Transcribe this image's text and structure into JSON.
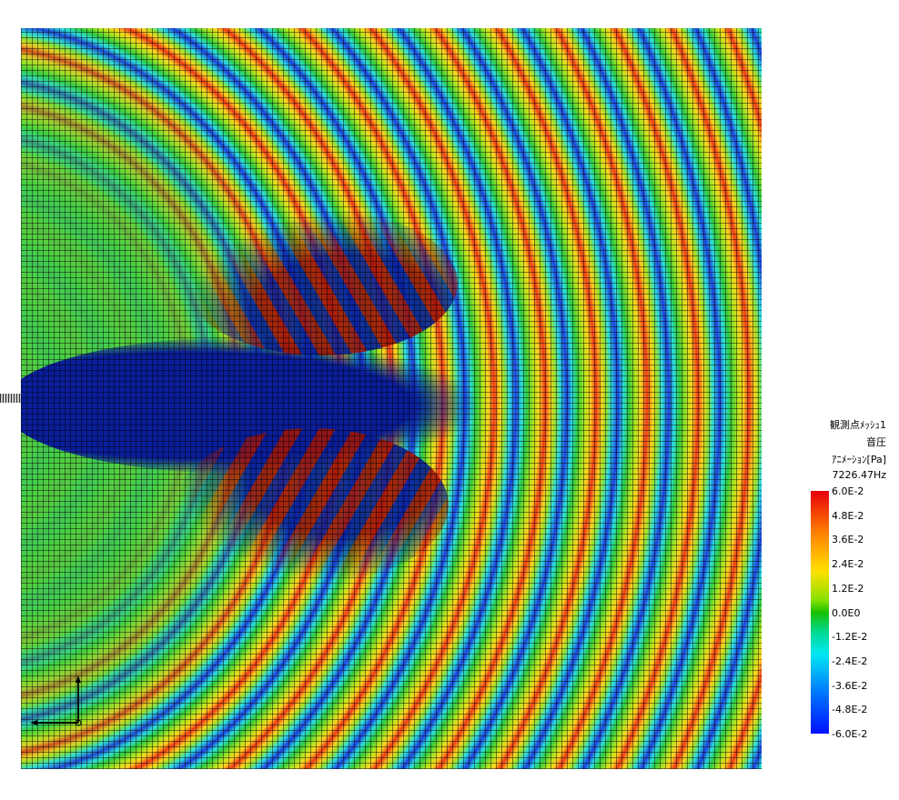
{
  "legend": {
    "title": "観測点ﾒｯｼｭ1",
    "quantity": "音圧",
    "unit": "ｱﾆﾒｰｼｮﾝ[Pa]",
    "frequency": "7226.47Hz",
    "ticks": [
      "6.0E-2",
      "4.8E-2",
      "3.6E-2",
      "2.4E-2",
      "1.2E-2",
      "0.0E0",
      "-1.2E-2",
      "-2.4E-2",
      "-3.6E-2",
      "-4.8E-2",
      "-6.0E-2"
    ]
  }
}
